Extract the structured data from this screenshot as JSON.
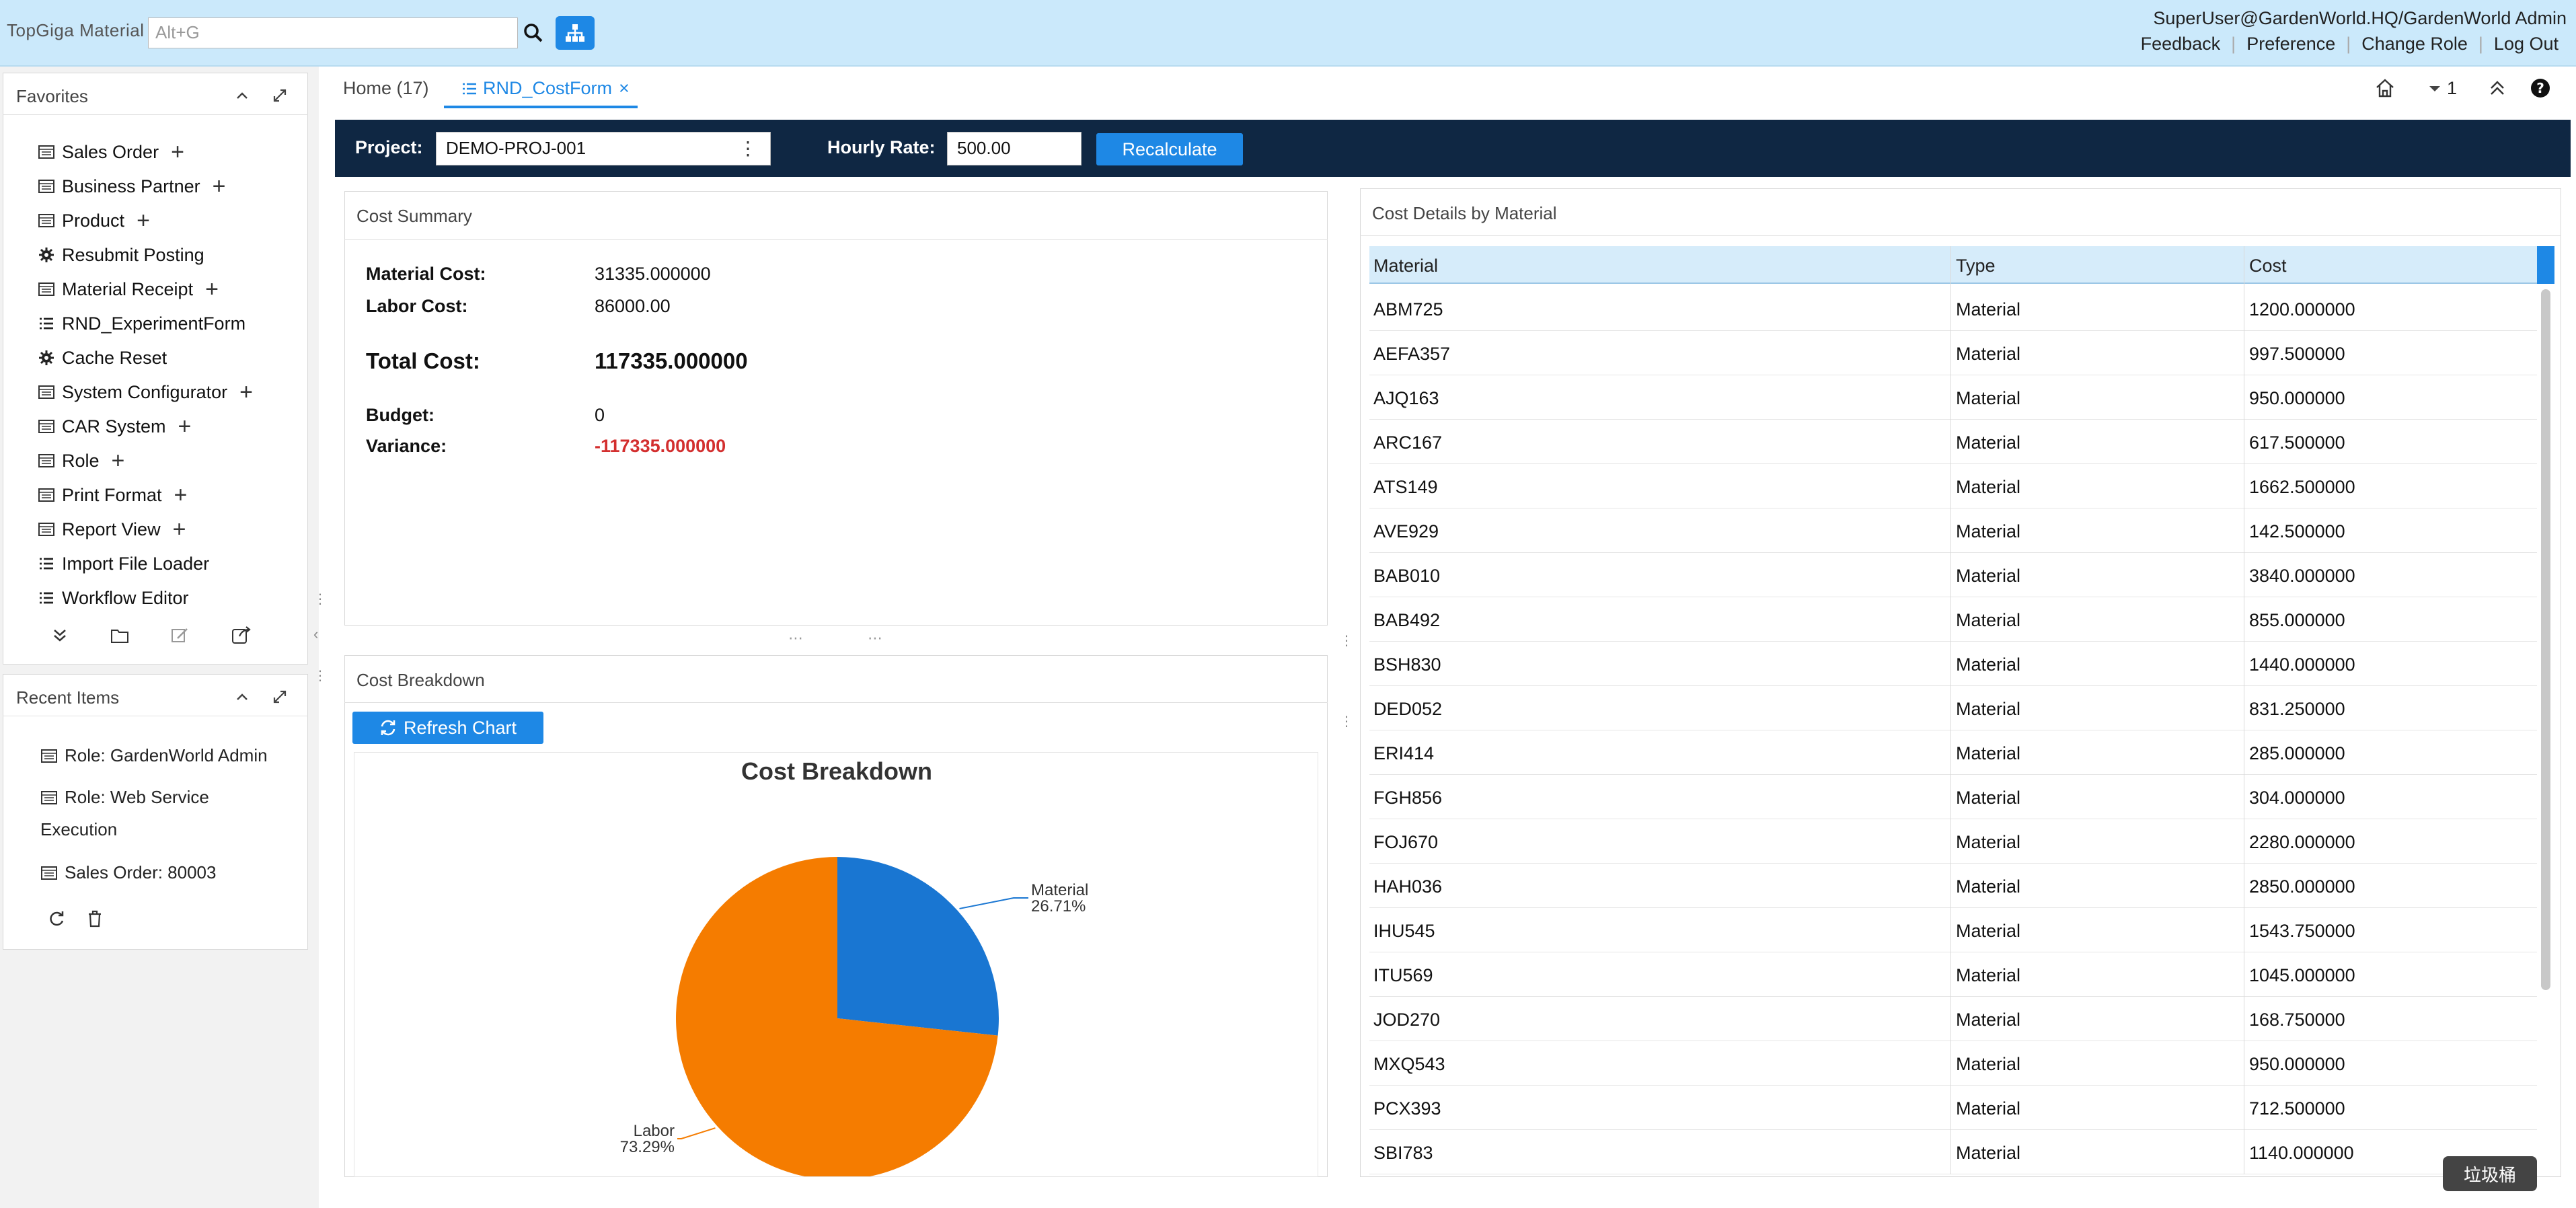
{
  "header": {
    "app_title": "TopGiga Material",
    "search_placeholder": "Alt+G",
    "user": "SuperUser@GardenWorld.HQ/GardenWorld Admin",
    "links": [
      "Feedback",
      "Preference",
      "Change Role",
      "Log Out"
    ]
  },
  "favorites": {
    "title": "Favorites",
    "items": [
      {
        "label": "Sales Order",
        "icon": "window-icon",
        "plus": true
      },
      {
        "label": "Business Partner",
        "icon": "window-icon",
        "plus": true
      },
      {
        "label": "Product",
        "icon": "window-icon",
        "plus": true
      },
      {
        "label": "Resubmit Posting",
        "icon": "gear-icon",
        "plus": false
      },
      {
        "label": "Material Receipt",
        "icon": "window-icon",
        "plus": true
      },
      {
        "label": "RND_ExperimentForm",
        "icon": "list-icon",
        "plus": false
      },
      {
        "label": "Cache Reset",
        "icon": "gear-icon",
        "plus": false
      },
      {
        "label": "System Configurator",
        "icon": "window-icon",
        "plus": true
      },
      {
        "label": "CAR System",
        "icon": "window-icon",
        "plus": true
      },
      {
        "label": "Role",
        "icon": "window-icon",
        "plus": true
      },
      {
        "label": "Print Format",
        "icon": "window-icon",
        "plus": true
      },
      {
        "label": "Report View",
        "icon": "window-icon",
        "plus": true
      },
      {
        "label": "Import File Loader",
        "icon": "list-icon",
        "plus": false
      },
      {
        "label": "Workflow Editor",
        "icon": "list-icon",
        "plus": false
      }
    ]
  },
  "recent": {
    "title": "Recent Items",
    "items": [
      "Role: GardenWorld Admin",
      "Role: Web Service",
      "Execution",
      "Sales Order: 80003"
    ]
  },
  "tabs": {
    "home": "Home (17)",
    "costform": "RND_CostForm",
    "close": "×",
    "counter": "1"
  },
  "toolbar": {
    "project_label": "Project:",
    "project_value": "DEMO-PROJ-001",
    "rate_label": "Hourly Rate:",
    "rate_value": "500.00",
    "recalc": "Recalculate"
  },
  "summary": {
    "title": "Cost Summary",
    "material_label": "Material Cost:",
    "material_value": "31335.000000",
    "labor_label": "Labor Cost:",
    "labor_value": "86000.00",
    "total_label": "Total Cost:",
    "total_value": "117335.000000",
    "budget_label": "Budget:",
    "budget_value": "0",
    "variance_label": "Variance:",
    "variance_value": "-117335.000000",
    "variance_color": "#d32f2f"
  },
  "breakdown": {
    "title": "Cost Breakdown",
    "refresh": "Refresh Chart"
  },
  "chart_data": {
    "type": "pie",
    "title": "Cost Breakdown",
    "categories": [
      "Material",
      "Labor"
    ],
    "values": [
      31335,
      86000
    ],
    "percent_labels": [
      "26.71%",
      "73.29%"
    ],
    "colors": [
      "#1976d2",
      "#f57c00"
    ]
  },
  "details": {
    "title": "Cost Details by Material",
    "columns": [
      "Material",
      "Type",
      "Cost"
    ],
    "rows": [
      [
        "ABM725",
        "Material",
        "1200.000000"
      ],
      [
        "AEFA357",
        "Material",
        "997.500000"
      ],
      [
        "AJQ163",
        "Material",
        "950.000000"
      ],
      [
        "ARC167",
        "Material",
        "617.500000"
      ],
      [
        "ATS149",
        "Material",
        "1662.500000"
      ],
      [
        "AVE929",
        "Material",
        "142.500000"
      ],
      [
        "BAB010",
        "Material",
        "3840.000000"
      ],
      [
        "BAB492",
        "Material",
        "855.000000"
      ],
      [
        "BSH830",
        "Material",
        "1440.000000"
      ],
      [
        "DED052",
        "Material",
        "831.250000"
      ],
      [
        "ERI414",
        "Material",
        "285.000000"
      ],
      [
        "FGH856",
        "Material",
        "304.000000"
      ],
      [
        "FOJ670",
        "Material",
        "2280.000000"
      ],
      [
        "HAH036",
        "Material",
        "2850.000000"
      ],
      [
        "IHU545",
        "Material",
        "1543.750000"
      ],
      [
        "ITU569",
        "Material",
        "1045.000000"
      ],
      [
        "JOD270",
        "Material",
        "168.750000"
      ],
      [
        "MXQ543",
        "Material",
        "950.000000"
      ],
      [
        "PCX393",
        "Material",
        "712.500000"
      ],
      [
        "SBI783",
        "Material",
        "1140.000000"
      ]
    ]
  },
  "tooltip": "垃圾桶",
  "colors": {
    "accent": "#1e88e5",
    "toolbar": "#0f2743",
    "header": "#cbe9fb"
  }
}
